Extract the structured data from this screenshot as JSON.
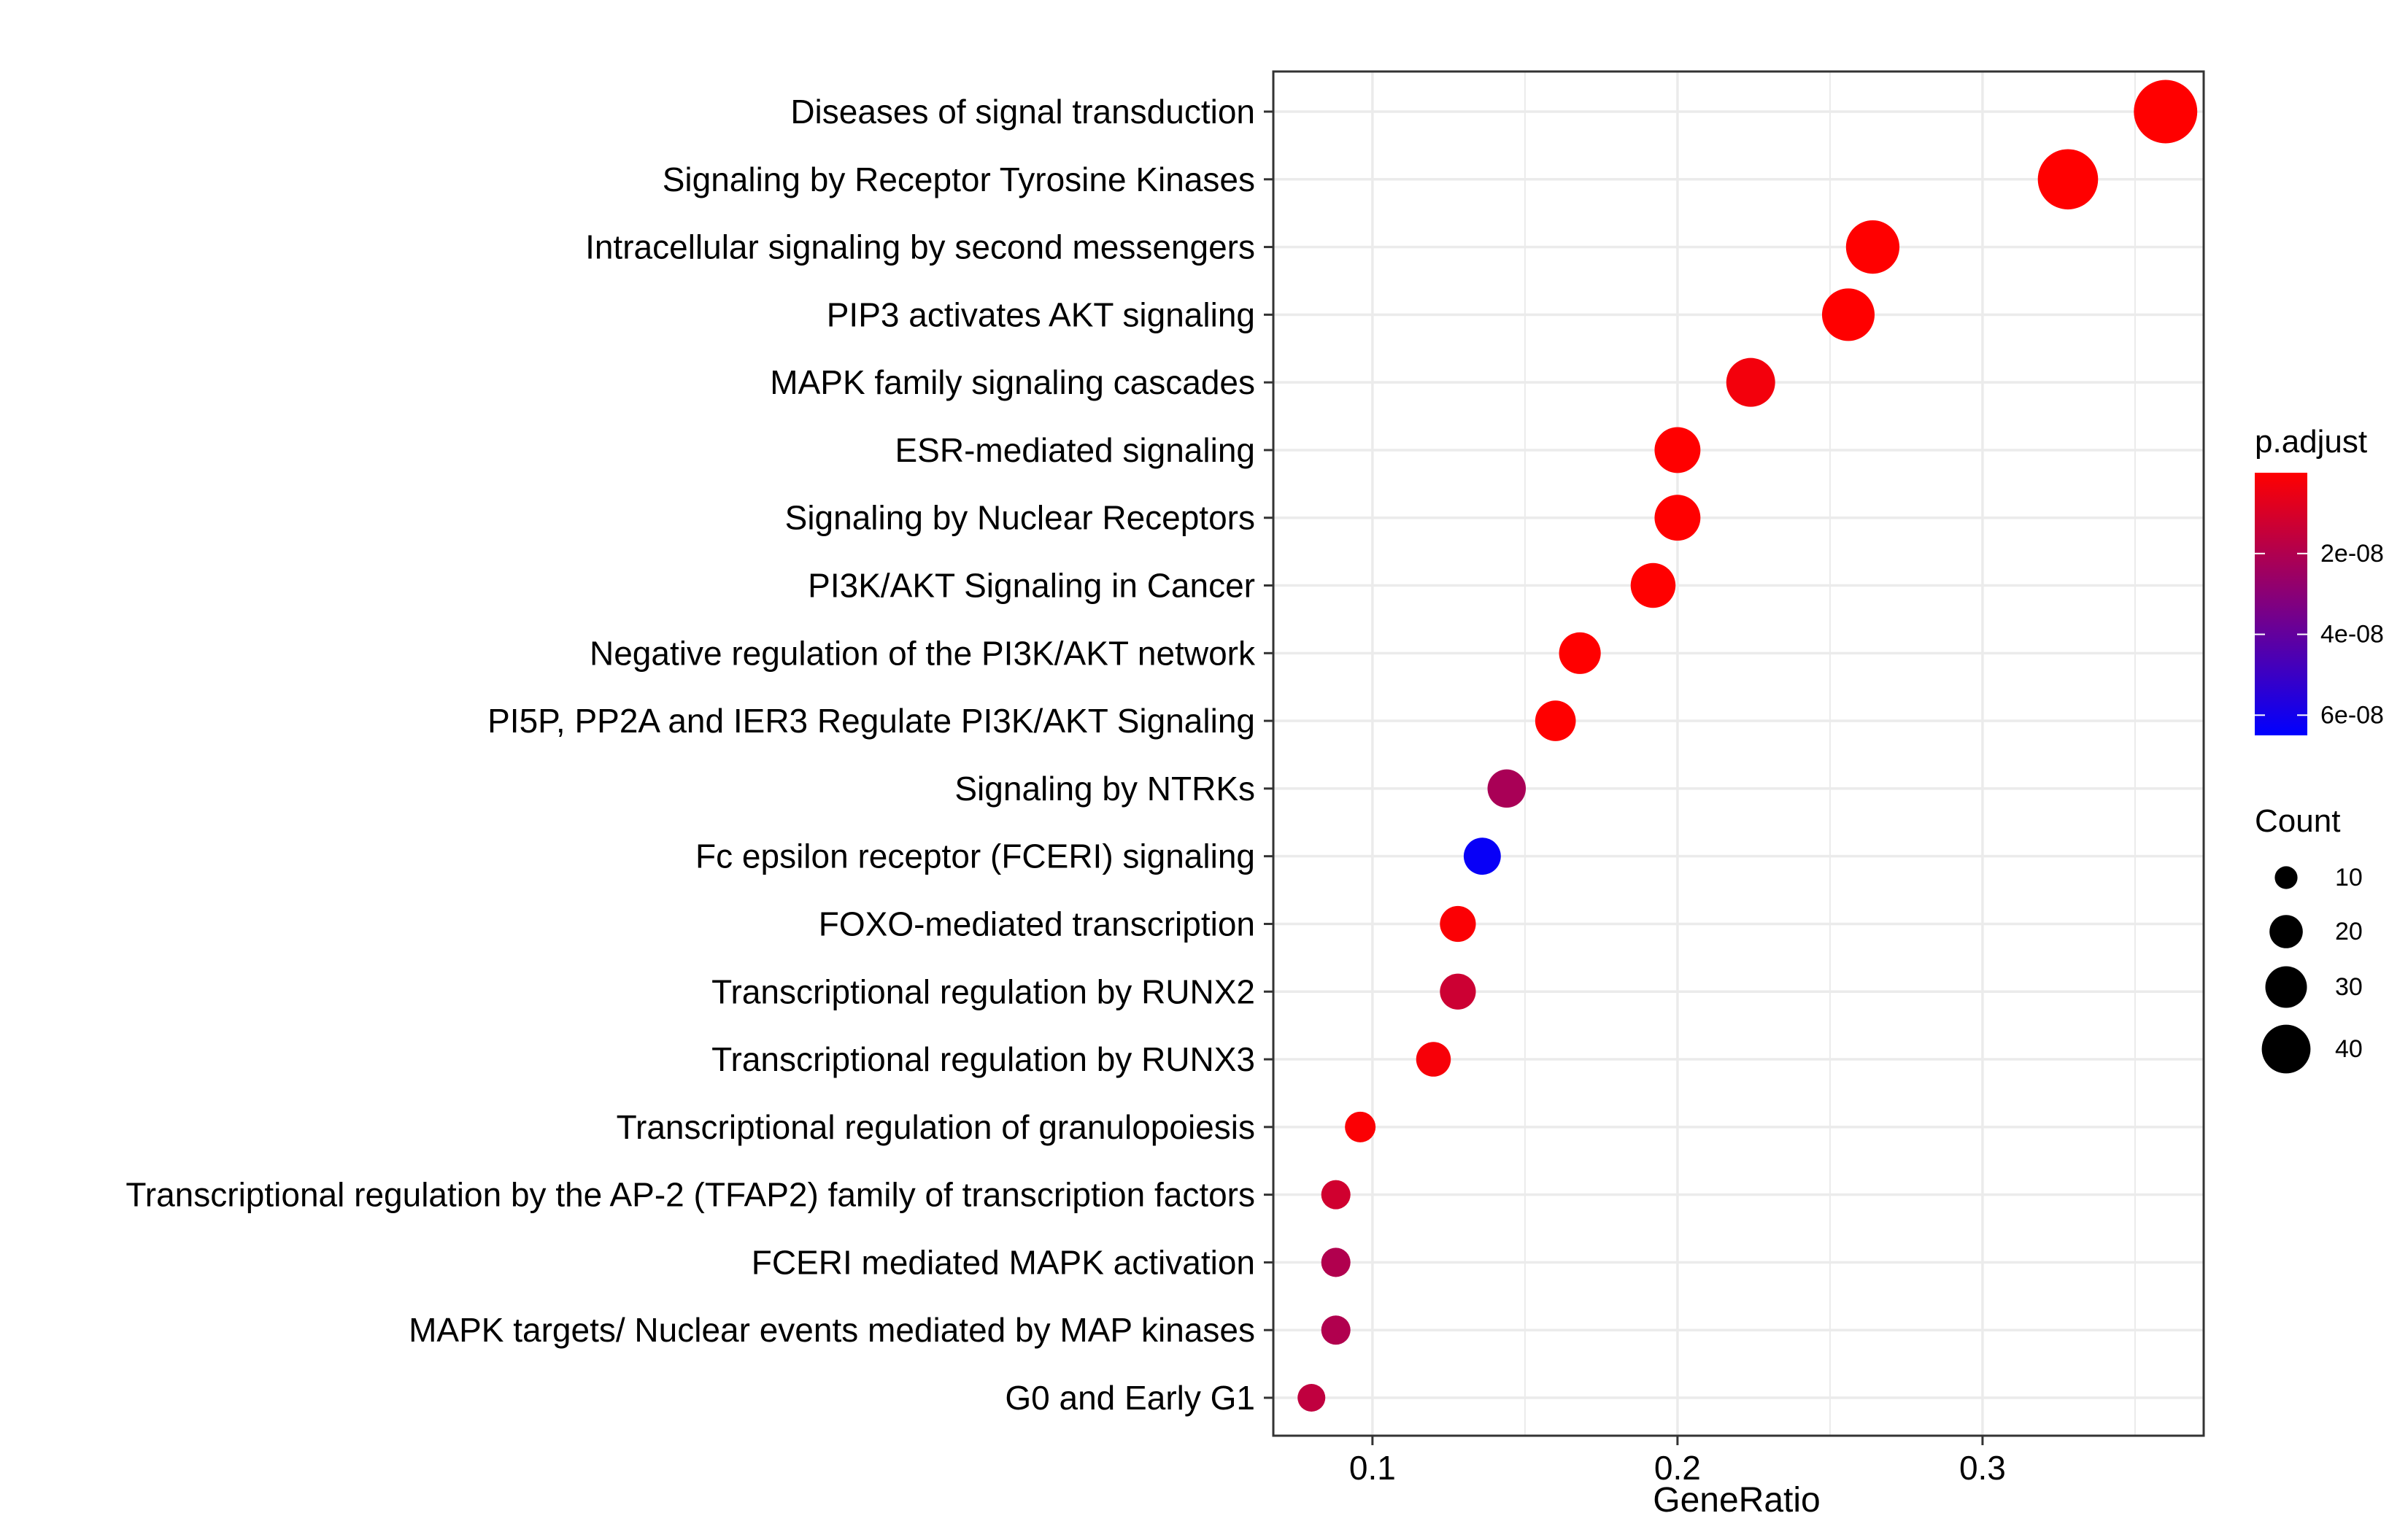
{
  "chart_data": {
    "type": "scatter",
    "title": "",
    "xlabel": "GeneRatio",
    "ylabel": "",
    "xlim": [
      0.0675,
      0.3725
    ],
    "x_ticks": [
      0.1,
      0.2,
      0.3
    ],
    "x_tick_labels": [
      "0.1",
      "0.2",
      "0.3"
    ],
    "grid": true,
    "categories": [
      "Diseases of signal transduction",
      "Signaling by Receptor Tyrosine Kinases",
      "Intracellular signaling by second messengers",
      "PIP3 activates AKT signaling",
      "MAPK family signaling cascades",
      "ESR-mediated signaling",
      "Signaling by Nuclear Receptors",
      "PI3K/AKT Signaling in Cancer",
      "Negative regulation of the PI3K/AKT network",
      "PI5P, PP2A and IER3 Regulate PI3K/AKT Signaling",
      "Signaling by NTRKs",
      "Fc epsilon receptor (FCERI) signaling",
      "FOXO-mediated transcription",
      "Transcriptional regulation by RUNX2",
      "Transcriptional regulation by RUNX3",
      "Transcriptional regulation of granulopoiesis",
      "Transcriptional regulation by the AP-2 (TFAP2) family of transcription factors",
      "FCERI mediated MAPK activation",
      "MAPK targets/ Nuclear events mediated by MAP kinases",
      "G0 and Early G1"
    ],
    "points": [
      {
        "category": "Diseases of signal transduction",
        "gene_ratio": 0.36,
        "count": 45,
        "p_adjust": 1e-12
      },
      {
        "category": "Signaling by Receptor Tyrosine Kinases",
        "gene_ratio": 0.328,
        "count": 41,
        "p_adjust": 1e-12
      },
      {
        "category": "Intracellular signaling by second messengers",
        "gene_ratio": 0.264,
        "count": 33,
        "p_adjust": 1e-12
      },
      {
        "category": "PIP3 activates AKT signaling",
        "gene_ratio": 0.256,
        "count": 32,
        "p_adjust": 1e-12
      },
      {
        "category": "MAPK family signaling cascades",
        "gene_ratio": 0.224,
        "count": 28,
        "p_adjust": 3e-09
      },
      {
        "category": "ESR-mediated signaling",
        "gene_ratio": 0.2,
        "count": 25,
        "p_adjust": 1e-12
      },
      {
        "category": "Signaling by Nuclear Receptors",
        "gene_ratio": 0.2,
        "count": 25,
        "p_adjust": 1e-12
      },
      {
        "category": "PI3K/AKT Signaling in Cancer",
        "gene_ratio": 0.192,
        "count": 24,
        "p_adjust": 1e-12
      },
      {
        "category": "Negative regulation of the PI3K/AKT network",
        "gene_ratio": 0.168,
        "count": 21,
        "p_adjust": 1e-12
      },
      {
        "category": "PI5P, PP2A and IER3 Regulate PI3K/AKT Signaling",
        "gene_ratio": 0.16,
        "count": 20,
        "p_adjust": 1e-12
      },
      {
        "category": "Signaling by NTRKs",
        "gene_ratio": 0.144,
        "count": 18,
        "p_adjust": 2.2e-08
      },
      {
        "category": "Fc epsilon receptor (FCERI) signaling",
        "gene_ratio": 0.136,
        "count": 17,
        "p_adjust": 6.3e-08
      },
      {
        "category": "FOXO-mediated transcription",
        "gene_ratio": 0.128,
        "count": 16,
        "p_adjust": 1e-09
      },
      {
        "category": "Transcriptional regulation by RUNX2",
        "gene_ratio": 0.128,
        "count": 16,
        "p_adjust": 1.3e-08
      },
      {
        "category": "Transcriptional regulation by RUNX3",
        "gene_ratio": 0.12,
        "count": 15,
        "p_adjust": 2e-09
      },
      {
        "category": "Transcriptional regulation of granulopoiesis",
        "gene_ratio": 0.096,
        "count": 12,
        "p_adjust": 1e-09
      },
      {
        "category": "Transcriptional regulation by the AP-2 (TFAP2) family of transcription factors",
        "gene_ratio": 0.088,
        "count": 11,
        "p_adjust": 1.2e-08
      },
      {
        "category": "FCERI mediated MAPK activation",
        "gene_ratio": 0.088,
        "count": 11,
        "p_adjust": 2e-08
      },
      {
        "category": "MAPK targets/ Nuclear events mediated by MAP kinases",
        "gene_ratio": 0.088,
        "count": 11,
        "p_adjust": 2e-08
      },
      {
        "category": "G0 and Early G1",
        "gene_ratio": 0.08,
        "count": 10,
        "p_adjust": 1.6e-08
      }
    ],
    "color_legend": {
      "title": "p.adjust",
      "ticks": [
        2e-08,
        4e-08,
        6e-08
      ],
      "tick_labels": [
        "2e-08",
        "4e-08",
        "6e-08"
      ],
      "range": [
        0,
        6.5e-08
      ],
      "low_color": "#ff0000",
      "high_color": "#0000ff"
    },
    "size_legend": {
      "title": "Count",
      "values": [
        10,
        20,
        30,
        40
      ],
      "labels": [
        "10",
        "20",
        "30",
        "40"
      ]
    },
    "colors": {
      "panel_border": "#333333",
      "grid": "#ebebeb",
      "point_low": "#ff0000",
      "point_high": "#0000ff"
    }
  }
}
